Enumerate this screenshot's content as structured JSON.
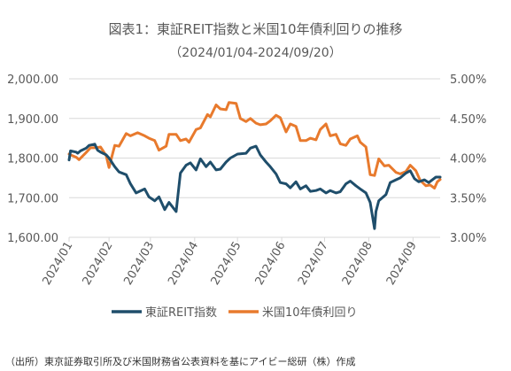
{
  "source_note": "（出所）東京証券取引所及び米国財務省公表資料を基にアイビー総研（株）作成",
  "chart_data": {
    "type": "line",
    "title": "図表1：東証REIT指数と米国10年債利回りの推移",
    "subtitle": "（2024/01/04-2024/09/20）",
    "x_tick_labels": [
      "2024/01",
      "2024/02",
      "2024/03",
      "2024/04",
      "2024/05",
      "2024/06",
      "2024/07",
      "2024/08",
      "2024/09"
    ],
    "y_left": {
      "ylim": [
        1600,
        2000
      ],
      "ticks": [
        1600,
        1700,
        1800,
        1900,
        2000
      ],
      "tick_labels": [
        "1,600.00",
        "1,700.00",
        "1,800.00",
        "1,900.00",
        "2,000.00"
      ]
    },
    "y_right": {
      "ylim": [
        3.0,
        5.0
      ],
      "ticks": [
        3.0,
        3.5,
        4.0,
        4.5,
        5.0
      ],
      "tick_labels": [
        "3.00%",
        "3.50%",
        "4.00%",
        "4.50%",
        "5.00%"
      ]
    },
    "grid": true,
    "legend_position": "bottom",
    "colors": {
      "reit": "#1f4e6b",
      "yield": "#e87a2d",
      "grid": "#d9d9d9",
      "text": "#595959"
    },
    "series": [
      {
        "name": "東証REIT指数",
        "axis": "left",
        "points": [
          [
            "2024-01-04",
            1795
          ],
          [
            "2024-01-05",
            1818
          ],
          [
            "2024-01-09",
            1815
          ],
          [
            "2024-01-10",
            1812
          ],
          [
            "2024-01-12",
            1818
          ],
          [
            "2024-01-16",
            1825
          ],
          [
            "2024-01-18",
            1832
          ],
          [
            "2024-01-22",
            1835
          ],
          [
            "2024-01-24",
            1820
          ],
          [
            "2024-01-26",
            1815
          ],
          [
            "2024-01-30",
            1808
          ],
          [
            "2024-02-01",
            1800
          ],
          [
            "2024-02-05",
            1778
          ],
          [
            "2024-02-08",
            1765
          ],
          [
            "2024-02-13",
            1758
          ],
          [
            "2024-02-16",
            1735
          ],
          [
            "2024-02-20",
            1712
          ],
          [
            "2024-02-26",
            1722
          ],
          [
            "2024-02-29",
            1702
          ],
          [
            "2024-03-04",
            1692
          ],
          [
            "2024-03-07",
            1702
          ],
          [
            "2024-03-11",
            1670
          ],
          [
            "2024-03-14",
            1688
          ],
          [
            "2024-03-19",
            1665
          ],
          [
            "2024-03-22",
            1762
          ],
          [
            "2024-03-26",
            1782
          ],
          [
            "2024-03-29",
            1788
          ],
          [
            "2024-04-02",
            1770
          ],
          [
            "2024-04-05",
            1798
          ],
          [
            "2024-04-09",
            1778
          ],
          [
            "2024-04-12",
            1790
          ],
          [
            "2024-04-16",
            1770
          ],
          [
            "2024-04-19",
            1772
          ],
          [
            "2024-04-23",
            1790
          ],
          [
            "2024-04-26",
            1800
          ],
          [
            "2024-05-01",
            1810
          ],
          [
            "2024-05-07",
            1812
          ],
          [
            "2024-05-10",
            1825
          ],
          [
            "2024-05-14",
            1830
          ],
          [
            "2024-05-17",
            1808
          ],
          [
            "2024-05-21",
            1790
          ],
          [
            "2024-05-24",
            1778
          ],
          [
            "2024-05-28",
            1760
          ],
          [
            "2024-05-31",
            1738
          ],
          [
            "2024-06-04",
            1735
          ],
          [
            "2024-06-07",
            1725
          ],
          [
            "2024-06-11",
            1740
          ],
          [
            "2024-06-14",
            1722
          ],
          [
            "2024-06-18",
            1730
          ],
          [
            "2024-06-21",
            1716
          ],
          [
            "2024-06-25",
            1718
          ],
          [
            "2024-06-28",
            1722
          ],
          [
            "2024-07-02",
            1712
          ],
          [
            "2024-07-05",
            1718
          ],
          [
            "2024-07-09",
            1712
          ],
          [
            "2024-07-12",
            1715
          ],
          [
            "2024-07-16",
            1735
          ],
          [
            "2024-07-19",
            1742
          ],
          [
            "2024-07-23",
            1730
          ],
          [
            "2024-07-26",
            1722
          ],
          [
            "2024-07-30",
            1712
          ],
          [
            "2024-08-02",
            1688
          ],
          [
            "2024-08-05",
            1622
          ],
          [
            "2024-08-06",
            1665
          ],
          [
            "2024-08-08",
            1692
          ],
          [
            "2024-08-13",
            1708
          ],
          [
            "2024-08-16",
            1738
          ],
          [
            "2024-08-20",
            1745
          ],
          [
            "2024-08-23",
            1750
          ],
          [
            "2024-08-27",
            1762
          ],
          [
            "2024-08-30",
            1768
          ],
          [
            "2024-09-02",
            1748
          ],
          [
            "2024-09-05",
            1740
          ],
          [
            "2024-09-09",
            1745
          ],
          [
            "2024-09-12",
            1738
          ],
          [
            "2024-09-17",
            1752
          ],
          [
            "2024-09-20",
            1752
          ]
        ]
      },
      {
        "name": "米国10年債利回り",
        "axis": "right",
        "points": [
          [
            "2024-01-04",
            4.05
          ],
          [
            "2024-01-05",
            4.04
          ],
          [
            "2024-01-09",
            4.01
          ],
          [
            "2024-01-11",
            3.98
          ],
          [
            "2024-01-16",
            4.07
          ],
          [
            "2024-01-19",
            4.13
          ],
          [
            "2024-01-23",
            4.13
          ],
          [
            "2024-01-26",
            4.14
          ],
          [
            "2024-01-30",
            4.03
          ],
          [
            "2024-02-01",
            3.88
          ],
          [
            "2024-02-05",
            4.16
          ],
          [
            "2024-02-08",
            4.15
          ],
          [
            "2024-02-13",
            4.31
          ],
          [
            "2024-02-16",
            4.28
          ],
          [
            "2024-02-21",
            4.32
          ],
          [
            "2024-02-26",
            4.28
          ],
          [
            "2024-02-29",
            4.25
          ],
          [
            "2024-03-04",
            4.22
          ],
          [
            "2024-03-07",
            4.1
          ],
          [
            "2024-03-12",
            4.15
          ],
          [
            "2024-03-14",
            4.3
          ],
          [
            "2024-03-19",
            4.3
          ],
          [
            "2024-03-22",
            4.22
          ],
          [
            "2024-03-26",
            4.24
          ],
          [
            "2024-03-28",
            4.2
          ],
          [
            "2024-04-02",
            4.36
          ],
          [
            "2024-04-05",
            4.38
          ],
          [
            "2024-04-10",
            4.55
          ],
          [
            "2024-04-12",
            4.52
          ],
          [
            "2024-04-16",
            4.67
          ],
          [
            "2024-04-19",
            4.62
          ],
          [
            "2024-04-23",
            4.61
          ],
          [
            "2024-04-25",
            4.7
          ],
          [
            "2024-04-30",
            4.69
          ],
          [
            "2024-05-03",
            4.5
          ],
          [
            "2024-05-07",
            4.46
          ],
          [
            "2024-05-10",
            4.5
          ],
          [
            "2024-05-14",
            4.44
          ],
          [
            "2024-05-17",
            4.42
          ],
          [
            "2024-05-21",
            4.43
          ],
          [
            "2024-05-24",
            4.47
          ],
          [
            "2024-05-28",
            4.54
          ],
          [
            "2024-05-31",
            4.51
          ],
          [
            "2024-06-04",
            4.33
          ],
          [
            "2024-06-07",
            4.43
          ],
          [
            "2024-06-11",
            4.4
          ],
          [
            "2024-06-14",
            4.22
          ],
          [
            "2024-06-18",
            4.22
          ],
          [
            "2024-06-21",
            4.25
          ],
          [
            "2024-06-25",
            4.23
          ],
          [
            "2024-06-28",
            4.36
          ],
          [
            "2024-07-02",
            4.43
          ],
          [
            "2024-07-05",
            4.28
          ],
          [
            "2024-07-09",
            4.3
          ],
          [
            "2024-07-12",
            4.18
          ],
          [
            "2024-07-16",
            4.16
          ],
          [
            "2024-07-19",
            4.24
          ],
          [
            "2024-07-24",
            4.28
          ],
          [
            "2024-07-26",
            4.2
          ],
          [
            "2024-07-30",
            4.14
          ],
          [
            "2024-08-02",
            3.79
          ],
          [
            "2024-08-05",
            3.78
          ],
          [
            "2024-08-08",
            3.99
          ],
          [
            "2024-08-12",
            3.9
          ],
          [
            "2024-08-15",
            3.91
          ],
          [
            "2024-08-20",
            3.82
          ],
          [
            "2024-08-23",
            3.8
          ],
          [
            "2024-08-27",
            3.83
          ],
          [
            "2024-08-30",
            3.91
          ],
          [
            "2024-09-03",
            3.84
          ],
          [
            "2024-09-06",
            3.72
          ],
          [
            "2024-09-10",
            3.65
          ],
          [
            "2024-09-13",
            3.66
          ],
          [
            "2024-09-16",
            3.62
          ],
          [
            "2024-09-18",
            3.7
          ],
          [
            "2024-09-20",
            3.73
          ]
        ]
      }
    ]
  }
}
